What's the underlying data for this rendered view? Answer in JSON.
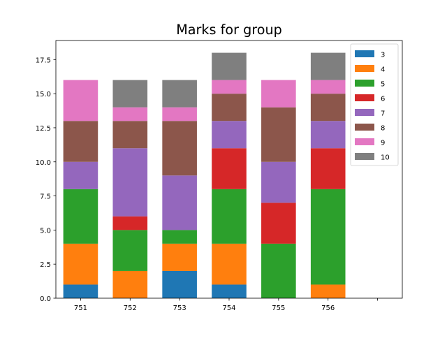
{
  "chart_data": {
    "type": "bar",
    "stacked": true,
    "title": "Marks for group",
    "xlabel": "",
    "ylabel": "",
    "categories": [
      "751",
      "752",
      "753",
      "754",
      "755",
      "756",
      ""
    ],
    "ylim": [
      0,
      18.9
    ],
    "yticks": [
      "0.0",
      "2.5",
      "5.0",
      "7.5",
      "10.0",
      "12.5",
      "15.0",
      "17.5"
    ],
    "ytick_values": [
      0,
      2.5,
      5,
      7.5,
      10,
      12.5,
      15,
      17.5
    ],
    "grid": false,
    "legend_position": "top-right",
    "series": [
      {
        "name": "3",
        "color": "#1f77b4",
        "values": [
          1,
          0,
          2,
          1,
          0,
          0,
          0
        ]
      },
      {
        "name": "4",
        "color": "#ff7f0e",
        "values": [
          3,
          2,
          2,
          3,
          0,
          1,
          0
        ]
      },
      {
        "name": "5",
        "color": "#2ca02c",
        "values": [
          4,
          3,
          1,
          4,
          4,
          7,
          0
        ]
      },
      {
        "name": "6",
        "color": "#d62728",
        "values": [
          0,
          1,
          0,
          3,
          3,
          3,
          0
        ]
      },
      {
        "name": "7",
        "color": "#9467bd",
        "values": [
          2,
          5,
          4,
          2,
          3,
          2,
          0
        ]
      },
      {
        "name": "8",
        "color": "#8c564b",
        "values": [
          3,
          2,
          4,
          2,
          4,
          2,
          0
        ]
      },
      {
        "name": "9",
        "color": "#e377c2",
        "values": [
          3,
          1,
          1,
          1,
          2,
          1,
          0
        ]
      },
      {
        "name": "10",
        "color": "#7f7f7f",
        "values": [
          0,
          2,
          2,
          2,
          0,
          2,
          0
        ]
      }
    ]
  }
}
